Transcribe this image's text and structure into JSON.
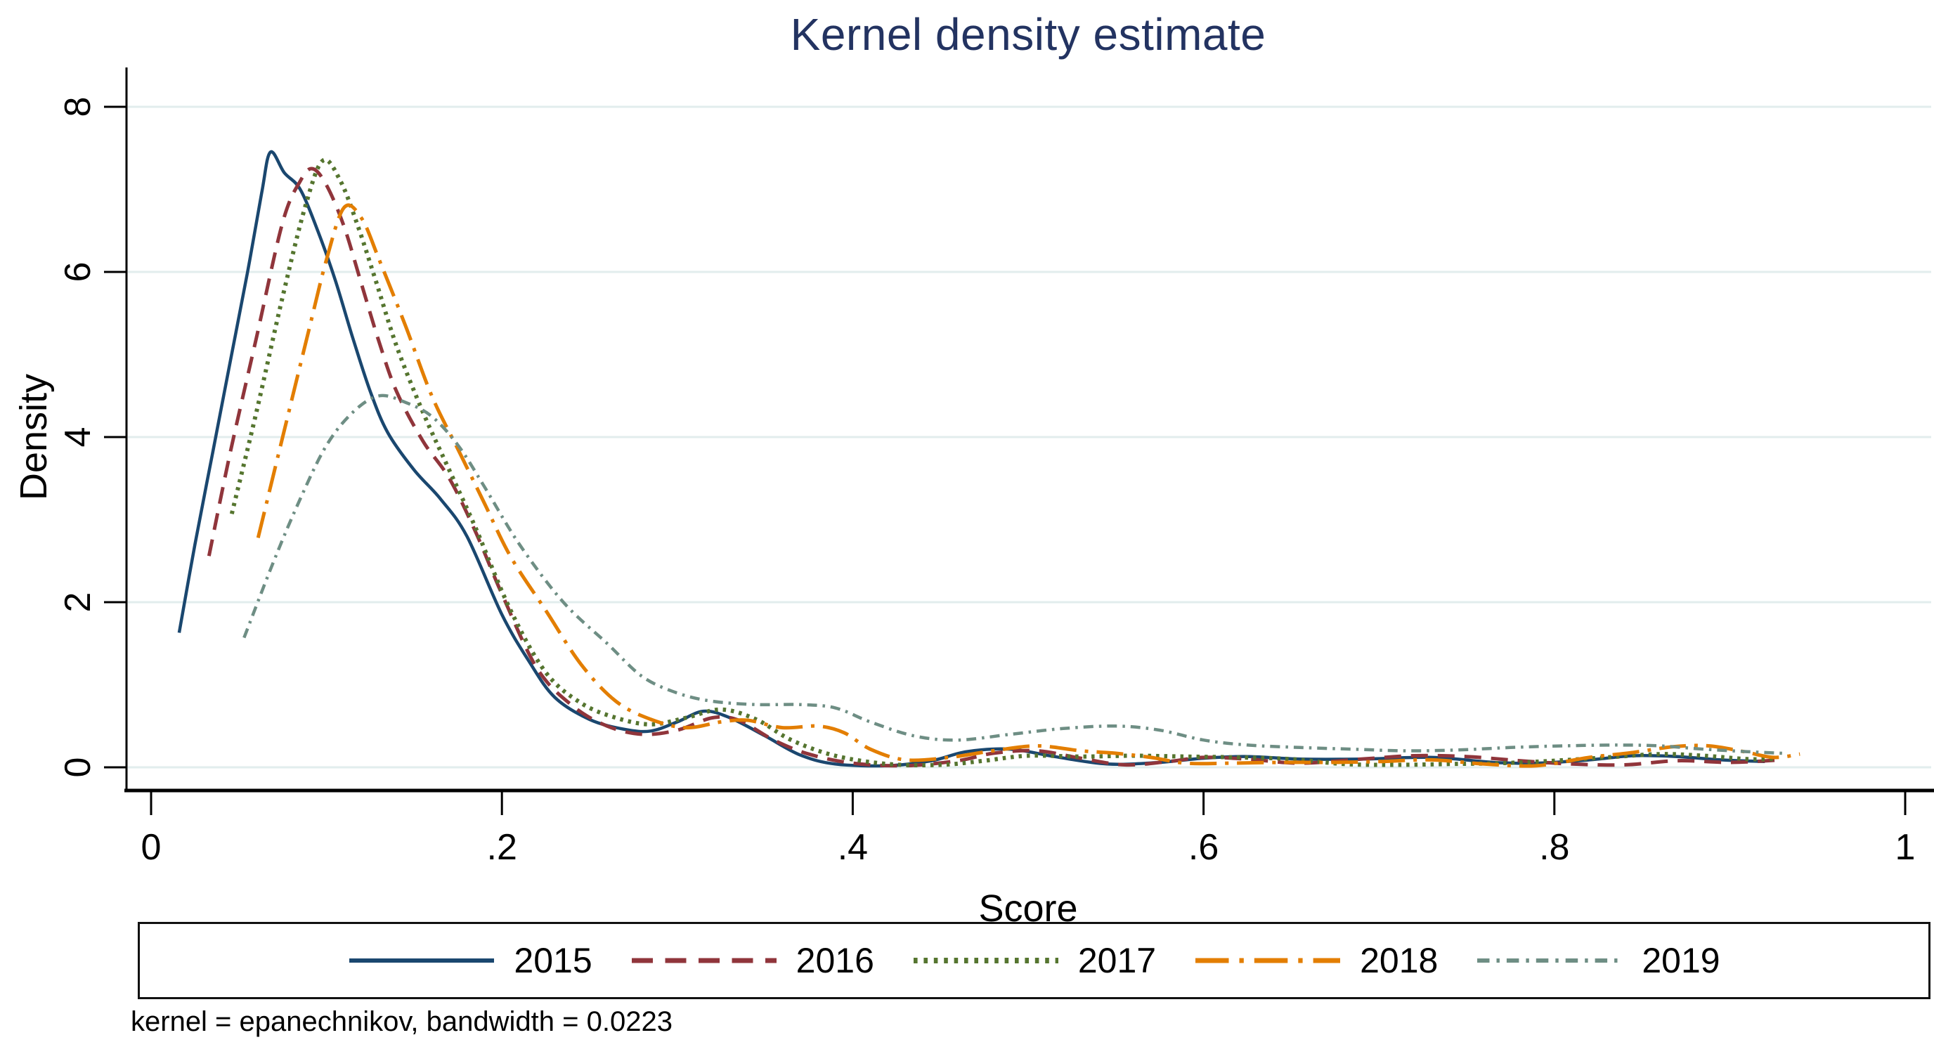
{
  "title": "Kernel density estimate",
  "note": "kernel = epanechnikov, bandwidth = 0.0223",
  "colors": {
    "title_text": "#233361",
    "axis_line": "#000000",
    "gridline": "#e2eded",
    "legend_border": "#111111",
    "background": "#ffffff"
  },
  "chart_data": {
    "type": "line",
    "title": "Kernel density estimate",
    "xlabel": "Score",
    "ylabel": "Density",
    "xlim": [
      0,
      1
    ],
    "ylim": [
      0,
      8
    ],
    "grid": "horizontal",
    "legend_position": "bottom",
    "note": "kernel = epanechnikov, bandwidth = 0.0223",
    "kernel": "epanechnikov",
    "bandwidth": 0.0223,
    "x_ticks": [
      {
        "v": 0,
        "label": "0"
      },
      {
        "v": 0.2,
        "label": ".2"
      },
      {
        "v": 0.4,
        "label": ".4"
      },
      {
        "v": 0.6,
        "label": ".6"
      },
      {
        "v": 0.8,
        "label": ".8"
      },
      {
        "v": 1,
        "label": "1"
      }
    ],
    "y_ticks": [
      {
        "v": 0,
        "label": "0"
      },
      {
        "v": 2,
        "label": "2"
      },
      {
        "v": 4,
        "label": "4"
      },
      {
        "v": 6,
        "label": "6"
      },
      {
        "v": 8,
        "label": "8"
      }
    ],
    "series": [
      {
        "name": "2015",
        "color": "#1a476f",
        "pattern": "solid",
        "points": [
          [
            0.016,
            1.63
          ],
          [
            0.025,
            2.7
          ],
          [
            0.035,
            3.8
          ],
          [
            0.045,
            4.9
          ],
          [
            0.055,
            6.0
          ],
          [
            0.063,
            6.95
          ],
          [
            0.068,
            7.45
          ],
          [
            0.076,
            7.2
          ],
          [
            0.085,
            7.0
          ],
          [
            0.095,
            6.5
          ],
          [
            0.105,
            5.9
          ],
          [
            0.115,
            5.2
          ],
          [
            0.125,
            4.55
          ],
          [
            0.135,
            4.05
          ],
          [
            0.15,
            3.6
          ],
          [
            0.165,
            3.25
          ],
          [
            0.18,
            2.8
          ],
          [
            0.2,
            1.85
          ],
          [
            0.215,
            1.3
          ],
          [
            0.23,
            0.85
          ],
          [
            0.25,
            0.58
          ],
          [
            0.27,
            0.46
          ],
          [
            0.285,
            0.44
          ],
          [
            0.3,
            0.55
          ],
          [
            0.315,
            0.68
          ],
          [
            0.33,
            0.6
          ],
          [
            0.35,
            0.38
          ],
          [
            0.37,
            0.15
          ],
          [
            0.39,
            0.04
          ],
          [
            0.42,
            0.02
          ],
          [
            0.445,
            0.08
          ],
          [
            0.465,
            0.19
          ],
          [
            0.49,
            0.22
          ],
          [
            0.515,
            0.13
          ],
          [
            0.545,
            0.04
          ],
          [
            0.575,
            0.06
          ],
          [
            0.6,
            0.11
          ],
          [
            0.625,
            0.13
          ],
          [
            0.655,
            0.1
          ],
          [
            0.69,
            0.1
          ],
          [
            0.73,
            0.12
          ],
          [
            0.765,
            0.06
          ],
          [
            0.79,
            0.05
          ],
          [
            0.82,
            0.09
          ],
          [
            0.845,
            0.14
          ],
          [
            0.87,
            0.13
          ],
          [
            0.895,
            0.09
          ],
          [
            0.92,
            0.07
          ]
        ]
      },
      {
        "name": "2016",
        "color": "#90353b",
        "pattern": "dash",
        "points": [
          [
            0.033,
            2.56
          ],
          [
            0.045,
            3.8
          ],
          [
            0.06,
            5.2
          ],
          [
            0.075,
            6.6
          ],
          [
            0.085,
            7.1
          ],
          [
            0.092,
            7.25
          ],
          [
            0.1,
            7.05
          ],
          [
            0.11,
            6.55
          ],
          [
            0.12,
            5.85
          ],
          [
            0.13,
            5.15
          ],
          [
            0.14,
            4.55
          ],
          [
            0.155,
            3.95
          ],
          [
            0.17,
            3.5
          ],
          [
            0.185,
            2.85
          ],
          [
            0.2,
            2.1
          ],
          [
            0.22,
            1.2
          ],
          [
            0.24,
            0.75
          ],
          [
            0.26,
            0.5
          ],
          [
            0.28,
            0.4
          ],
          [
            0.3,
            0.45
          ],
          [
            0.32,
            0.6
          ],
          [
            0.335,
            0.57
          ],
          [
            0.355,
            0.33
          ],
          [
            0.375,
            0.16
          ],
          [
            0.4,
            0.05
          ],
          [
            0.43,
            0.02
          ],
          [
            0.46,
            0.08
          ],
          [
            0.48,
            0.17
          ],
          [
            0.505,
            0.2
          ],
          [
            0.53,
            0.11
          ],
          [
            0.555,
            0.03
          ],
          [
            0.58,
            0.07
          ],
          [
            0.6,
            0.12
          ],
          [
            0.625,
            0.1
          ],
          [
            0.655,
            0.05
          ],
          [
            0.69,
            0.1
          ],
          [
            0.72,
            0.14
          ],
          [
            0.75,
            0.13
          ],
          [
            0.78,
            0.08
          ],
          [
            0.81,
            0.04
          ],
          [
            0.84,
            0.03
          ],
          [
            0.87,
            0.08
          ],
          [
            0.9,
            0.06
          ],
          [
            0.93,
            0.09
          ]
        ]
      },
      {
        "name": "2017",
        "color": "#55752f",
        "pattern": "dot",
        "points": [
          [
            0.046,
            3.07
          ],
          [
            0.06,
            4.3
          ],
          [
            0.075,
            5.7
          ],
          [
            0.088,
            6.8
          ],
          [
            0.098,
            7.35
          ],
          [
            0.108,
            7.1
          ],
          [
            0.118,
            6.55
          ],
          [
            0.128,
            5.9
          ],
          [
            0.14,
            5.1
          ],
          [
            0.155,
            4.3
          ],
          [
            0.17,
            3.6
          ],
          [
            0.185,
            2.9
          ],
          [
            0.205,
            1.9
          ],
          [
            0.225,
            1.15
          ],
          [
            0.245,
            0.78
          ],
          [
            0.265,
            0.6
          ],
          [
            0.285,
            0.52
          ],
          [
            0.305,
            0.6
          ],
          [
            0.325,
            0.7
          ],
          [
            0.345,
            0.58
          ],
          [
            0.365,
            0.33
          ],
          [
            0.39,
            0.14
          ],
          [
            0.42,
            0.04
          ],
          [
            0.45,
            0.03
          ],
          [
            0.475,
            0.08
          ],
          [
            0.5,
            0.14
          ],
          [
            0.53,
            0.13
          ],
          [
            0.56,
            0.14
          ],
          [
            0.59,
            0.13
          ],
          [
            0.62,
            0.12
          ],
          [
            0.65,
            0.1
          ],
          [
            0.68,
            0.04
          ],
          [
            0.71,
            0.03
          ],
          [
            0.74,
            0.04
          ],
          [
            0.77,
            0.05
          ],
          [
            0.8,
            0.08
          ],
          [
            0.83,
            0.12
          ],
          [
            0.86,
            0.16
          ],
          [
            0.885,
            0.14
          ],
          [
            0.91,
            0.1
          ],
          [
            0.925,
            0.1
          ]
        ]
      },
      {
        "name": "2018",
        "color": "#e37e00",
        "pattern": "dash_dot",
        "points": [
          [
            0.061,
            2.78
          ],
          [
            0.075,
            4.0
          ],
          [
            0.09,
            5.3
          ],
          [
            0.1,
            6.15
          ],
          [
            0.11,
            6.78
          ],
          [
            0.12,
            6.65
          ],
          [
            0.13,
            6.15
          ],
          [
            0.145,
            5.35
          ],
          [
            0.16,
            4.5
          ],
          [
            0.175,
            3.85
          ],
          [
            0.19,
            3.2
          ],
          [
            0.205,
            2.55
          ],
          [
            0.225,
            1.9
          ],
          [
            0.245,
            1.25
          ],
          [
            0.265,
            0.8
          ],
          [
            0.285,
            0.58
          ],
          [
            0.305,
            0.48
          ],
          [
            0.325,
            0.55
          ],
          [
            0.34,
            0.57
          ],
          [
            0.36,
            0.48
          ],
          [
            0.38,
            0.5
          ],
          [
            0.395,
            0.42
          ],
          [
            0.41,
            0.22
          ],
          [
            0.43,
            0.09
          ],
          [
            0.455,
            0.12
          ],
          [
            0.48,
            0.2
          ],
          [
            0.505,
            0.26
          ],
          [
            0.53,
            0.2
          ],
          [
            0.55,
            0.17
          ],
          [
            0.57,
            0.12
          ],
          [
            0.59,
            0.05
          ],
          [
            0.615,
            0.05
          ],
          [
            0.645,
            0.06
          ],
          [
            0.675,
            0.06
          ],
          [
            0.7,
            0.07
          ],
          [
            0.73,
            0.09
          ],
          [
            0.76,
            0.04
          ],
          [
            0.79,
            0.02
          ],
          [
            0.82,
            0.12
          ],
          [
            0.845,
            0.18
          ],
          [
            0.868,
            0.25
          ],
          [
            0.888,
            0.26
          ],
          [
            0.908,
            0.19
          ],
          [
            0.925,
            0.12
          ],
          [
            0.94,
            0.16
          ]
        ]
      },
      {
        "name": "2019",
        "color": "#6e8e84",
        "pattern": "shortdash_dot",
        "points": [
          [
            0.053,
            1.57
          ],
          [
            0.07,
            2.5
          ],
          [
            0.085,
            3.25
          ],
          [
            0.1,
            3.9
          ],
          [
            0.115,
            4.3
          ],
          [
            0.13,
            4.5
          ],
          [
            0.145,
            4.42
          ],
          [
            0.16,
            4.25
          ],
          [
            0.175,
            3.9
          ],
          [
            0.19,
            3.4
          ],
          [
            0.21,
            2.7
          ],
          [
            0.235,
            2.0
          ],
          [
            0.26,
            1.5
          ],
          [
            0.28,
            1.1
          ],
          [
            0.3,
            0.9
          ],
          [
            0.32,
            0.8
          ],
          [
            0.345,
            0.76
          ],
          [
            0.37,
            0.76
          ],
          [
            0.39,
            0.72
          ],
          [
            0.41,
            0.55
          ],
          [
            0.435,
            0.38
          ],
          [
            0.46,
            0.33
          ],
          [
            0.49,
            0.4
          ],
          [
            0.52,
            0.47
          ],
          [
            0.55,
            0.5
          ],
          [
            0.575,
            0.45
          ],
          [
            0.6,
            0.33
          ],
          [
            0.625,
            0.27
          ],
          [
            0.655,
            0.24
          ],
          [
            0.685,
            0.22
          ],
          [
            0.715,
            0.2
          ],
          [
            0.745,
            0.21
          ],
          [
            0.775,
            0.24
          ],
          [
            0.805,
            0.26
          ],
          [
            0.835,
            0.27
          ],
          [
            0.86,
            0.26
          ],
          [
            0.885,
            0.22
          ],
          [
            0.91,
            0.19
          ],
          [
            0.93,
            0.17
          ]
        ]
      }
    ]
  }
}
